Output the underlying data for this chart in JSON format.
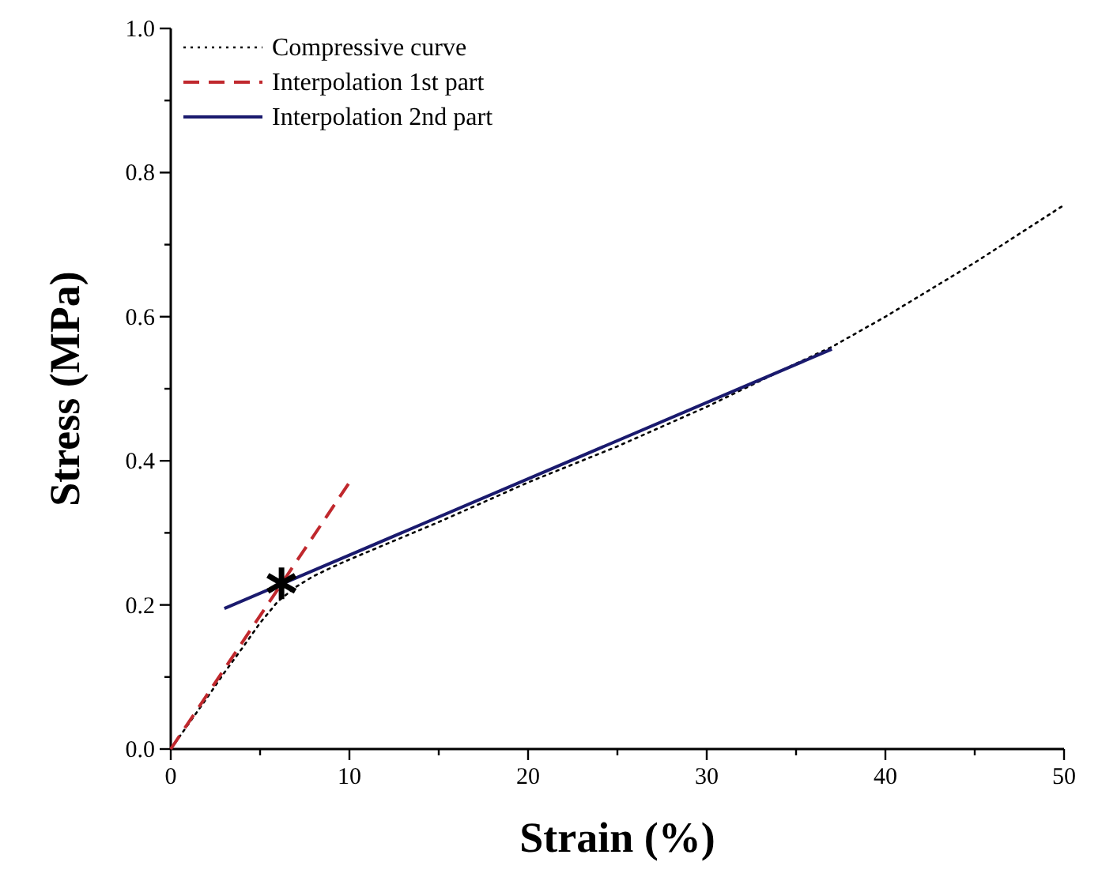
{
  "chart_data": {
    "type": "line",
    "xlabel": "Strain (%)",
    "ylabel": "Stress (MPa)",
    "xlim": [
      0,
      50
    ],
    "ylim": [
      0,
      1
    ],
    "xticks": [
      0,
      {
        "value": 5,
        "label": null
      },
      10,
      {
        "value": 15,
        "label": null
      },
      20,
      {
        "value": 25,
        "label": null
      },
      30,
      {
        "value": 35,
        "label": null
      },
      40,
      {
        "value": 45,
        "label": null
      },
      50
    ],
    "yticks": [
      {
        "value": 0,
        "label": "0.0"
      },
      {
        "value": 0.1,
        "label": null
      },
      0.2,
      {
        "value": 0.3,
        "label": null
      },
      0.4,
      {
        "value": 0.5,
        "label": null
      },
      0.6,
      {
        "value": 0.7,
        "label": null
      },
      0.8,
      {
        "value": 0.9,
        "label": null
      },
      {
        "value": 1,
        "label": "1.0"
      }
    ],
    "legend": "top left",
    "grid": false,
    "series": [
      {
        "name": "Compressive curve",
        "color": "#000000",
        "line_style": "dotted",
        "x": [
          0,
          1,
          2,
          3,
          4,
          5,
          6,
          7,
          8,
          9,
          10,
          15,
          20,
          25,
          30,
          35,
          37,
          40,
          45,
          50
        ],
        "values": [
          0,
          0.035,
          0.07,
          0.106,
          0.14,
          0.175,
          0.205,
          0.225,
          0.24,
          0.252,
          0.263,
          0.315,
          0.37,
          0.42,
          0.475,
          0.535,
          0.558,
          0.6,
          0.675,
          0.755
        ]
      },
      {
        "name": "Interpolation 1st part",
        "color": "#c0282d",
        "line_style": "dashed",
        "x": [
          0,
          10
        ],
        "values": [
          0,
          0.37
        ]
      },
      {
        "name": "Interpolation 2nd part",
        "color": "#1a1a6e",
        "line_style": "solid",
        "x": [
          3,
          37
        ],
        "values": [
          0.195,
          0.555
        ]
      },
      {
        "type": "scatter",
        "marker": "cross",
        "color": "#000000",
        "x": [
          6.2
        ],
        "values": [
          0.23
        ]
      }
    ]
  }
}
